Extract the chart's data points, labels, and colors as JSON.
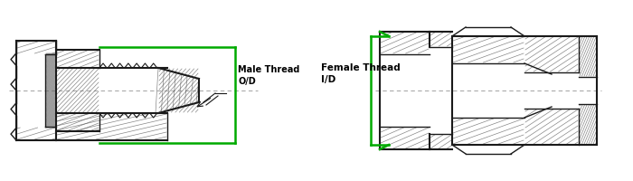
{
  "bg_color": "#ffffff",
  "line_color": "#1a1a1a",
  "green_color": "#00aa00",
  "dash_color": "#aaaaaa",
  "figsize": [
    7.0,
    2.0
  ],
  "dpi": 100,
  "left_label1": "Male Thread",
  "left_label2": "O/D",
  "right_label1": "Female Thread",
  "right_label2": "I/D"
}
